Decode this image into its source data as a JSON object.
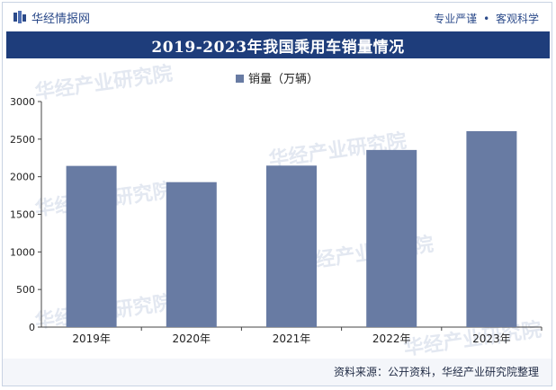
{
  "header": {
    "brand": "华经情报网",
    "slogan_left": "专业严谨",
    "slogan_right": "客观科学"
  },
  "title": "2019-2023年我国乘用车销量情况",
  "source": "资料来源：公开资料，华经产业研究院整理",
  "watermark": "华经产业研究院",
  "colors": {
    "bar": "#687ba3",
    "title_bg": "#1e3d7b",
    "brand": "#2b4a8a"
  },
  "chart_data": {
    "type": "bar",
    "title": "2019-2023年我国乘用车销量情况",
    "categories": [
      "2019年",
      "2020年",
      "2021年",
      "2022年",
      "2023年"
    ],
    "series": [
      {
        "name": "销量（万辆）",
        "values": [
          2144,
          1928,
          2148,
          2356,
          2606
        ]
      }
    ],
    "yticks": [
      "0",
      "500",
      "1000",
      "1500",
      "2000",
      "2500",
      "3000"
    ],
    "ylim": [
      0,
      3000
    ],
    "grid": false,
    "legend": "top-center"
  }
}
